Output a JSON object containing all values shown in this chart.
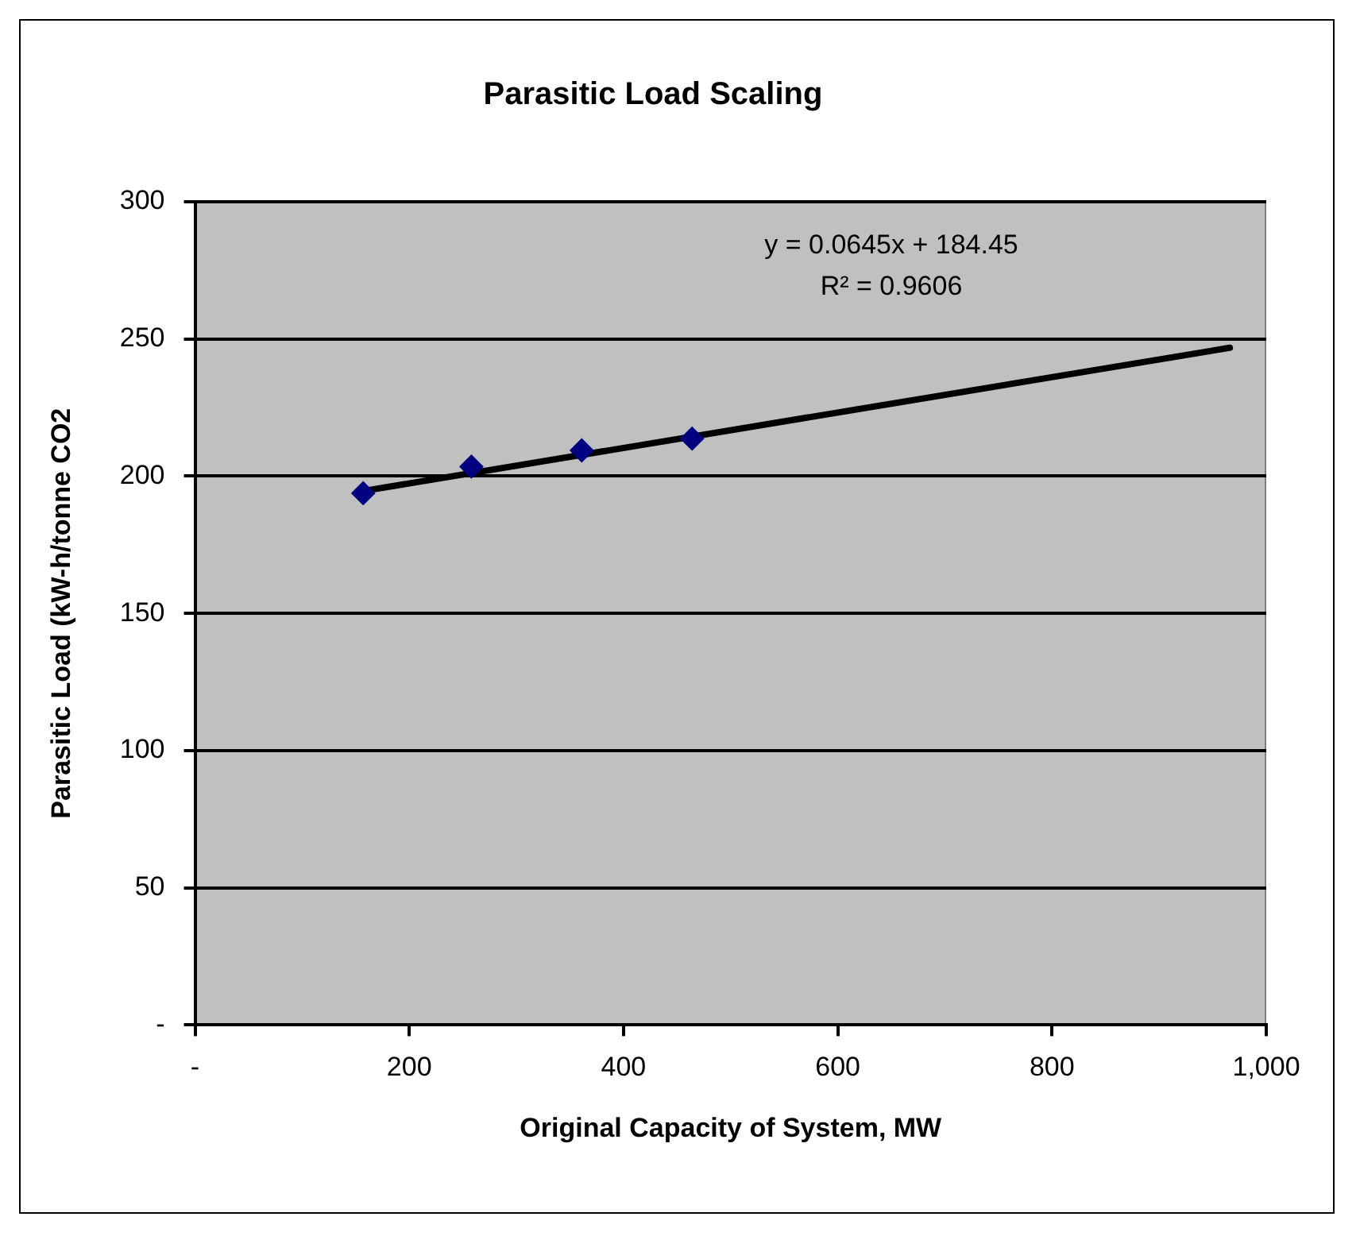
{
  "chart_data": {
    "type": "scatter",
    "title": "Parasitic Load Scaling",
    "xlabel": "Original Capacity of System, MW",
    "ylabel": "Parasitic Load (kW-h/tonne CO2",
    "x": [
      157,
      258,
      361,
      464
    ],
    "series": [
      {
        "type": "scatter",
        "color": "#000080",
        "values": [
          193.8,
          203.5,
          209.4,
          213.7
        ]
      },
      {
        "type": "line",
        "color": "#000000",
        "x": [
          157,
          966
        ],
        "values": [
          194.6,
          246.8
        ],
        "marker": "none"
      }
    ],
    "annotations": [
      "y = 0.0645x + 184.45",
      "R² = 0.9606"
    ],
    "xlim": [
      0,
      1000
    ],
    "xticks": [
      {
        "value": 0,
        "label": "-"
      },
      200,
      400,
      600,
      800,
      {
        "value": 1000,
        "label": "1,000"
      }
    ],
    "ylim": [
      0,
      300
    ],
    "yticks": [
      {
        "value": 0,
        "label": "-"
      },
      50,
      100,
      150,
      200,
      250,
      300
    ],
    "grid": "y",
    "marker": "diamond",
    "legend": false
  }
}
